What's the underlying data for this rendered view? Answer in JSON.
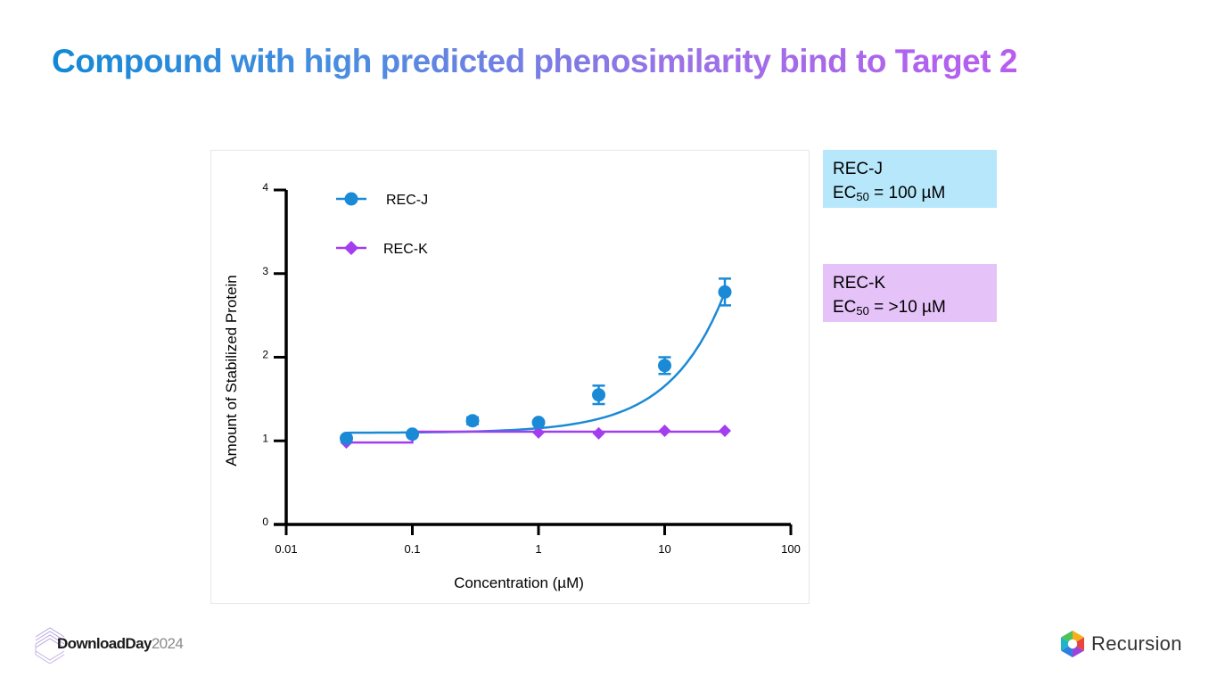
{
  "title": "Compound with high predicted phenosimilarity bind to Target 2",
  "colors": {
    "rec_j": "#1a8ad6",
    "rec_k": "#a43cf0",
    "axis": "#000000"
  },
  "chart_data": {
    "type": "scatter",
    "xscale": "log",
    "xlabel": "Concentration (µM)",
    "ylabel": "Amount of Stabilized Protein",
    "xlim": [
      0.01,
      100
    ],
    "ylim": [
      0,
      4
    ],
    "xticks": [
      0.01,
      0.1,
      1,
      10,
      100
    ],
    "xtick_labels": [
      "0.01",
      "0.1",
      "1",
      "10",
      "100"
    ],
    "yticks": [
      0,
      1,
      2,
      3,
      4
    ],
    "ytick_labels": [
      "0",
      "1",
      "2",
      "3",
      "4"
    ],
    "legend_position": "top-left",
    "series": [
      {
        "name": "REC-J",
        "marker": "circle",
        "color": "#1a8ad6",
        "points": [
          {
            "x": 0.03,
            "y": 1.03,
            "err": 0.02
          },
          {
            "x": 0.1,
            "y": 1.08,
            "err": 0.02
          },
          {
            "x": 0.3,
            "y": 1.24,
            "err": 0.04
          },
          {
            "x": 1,
            "y": 1.22,
            "err": 0.03
          },
          {
            "x": 3,
            "y": 1.55,
            "err": 0.11
          },
          {
            "x": 10,
            "y": 1.9,
            "err": 0.1
          },
          {
            "x": 30,
            "y": 2.78,
            "err": 0.16
          }
        ],
        "fit": "exponential-increase"
      },
      {
        "name": "REC-K",
        "marker": "diamond",
        "color": "#a43cf0",
        "points": [
          {
            "x": 0.03,
            "y": 0.98,
            "err": 0
          },
          {
            "x": 0.1,
            "y": 1.08,
            "err": 0
          },
          {
            "x": 1,
            "y": 1.1,
            "err": 0
          },
          {
            "x": 3,
            "y": 1.09,
            "err": 0
          },
          {
            "x": 10,
            "y": 1.12,
            "err": 0
          },
          {
            "x": 30,
            "y": 1.12,
            "err": 0
          }
        ],
        "fit": "step"
      }
    ]
  },
  "info_boxes": [
    {
      "name": "REC-J",
      "ec_prefix": "EC",
      "ec_sub": "50",
      "ec_value": " = 100 µM",
      "color": "#b7e7fb"
    },
    {
      "name": "REC-K",
      "ec_prefix": "EC",
      "ec_sub": "50",
      "ec_value": " = >10 µM",
      "color": "#e5c2f8"
    }
  ],
  "footer": {
    "download_day_name": "DownloadDay",
    "download_day_year": "2024",
    "brand": "Recursion"
  }
}
